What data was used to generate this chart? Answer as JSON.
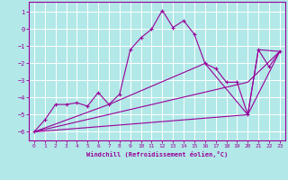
{
  "xlabel": "Windchill (Refroidissement éolien,°C)",
  "bg_color": "#b2e8e8",
  "grid_color": "#ffffff",
  "line_color": "#990099",
  "xlim": [
    -0.5,
    23.5
  ],
  "ylim": [
    -6.5,
    1.6
  ],
  "yticks": [
    1,
    0,
    -1,
    -2,
    -3,
    -4,
    -5,
    -6
  ],
  "xticks": [
    0,
    1,
    2,
    3,
    4,
    5,
    6,
    7,
    8,
    9,
    10,
    11,
    12,
    13,
    14,
    15,
    16,
    17,
    18,
    19,
    20,
    21,
    22,
    23
  ],
  "series": [
    {
      "x": [
        0,
        1,
        2,
        3,
        4,
        5,
        6,
        7,
        8,
        9,
        10,
        11,
        12,
        13,
        14,
        15,
        16,
        17,
        18,
        19,
        20,
        21,
        22,
        23
      ],
      "y": [
        -6.0,
        -5.3,
        -4.4,
        -4.4,
        -4.3,
        -4.5,
        -3.7,
        -4.4,
        -3.8,
        -1.2,
        -0.5,
        0.0,
        1.1,
        0.1,
        0.5,
        -0.3,
        -2.0,
        -2.3,
        -3.1,
        -3.1,
        -5.0,
        -1.2,
        -2.2,
        -1.3
      ],
      "marker": true
    },
    {
      "x": [
        0,
        20,
        23
      ],
      "y": [
        -6.0,
        -5.0,
        -1.3
      ],
      "marker": false
    },
    {
      "x": [
        0,
        20,
        23
      ],
      "y": [
        -6.0,
        -3.1,
        -1.3
      ],
      "marker": false
    },
    {
      "x": [
        0,
        7,
        16,
        20,
        21,
        23
      ],
      "y": [
        -6.0,
        -4.4,
        -2.0,
        -5.0,
        -1.2,
        -1.3
      ],
      "marker": false
    }
  ]
}
